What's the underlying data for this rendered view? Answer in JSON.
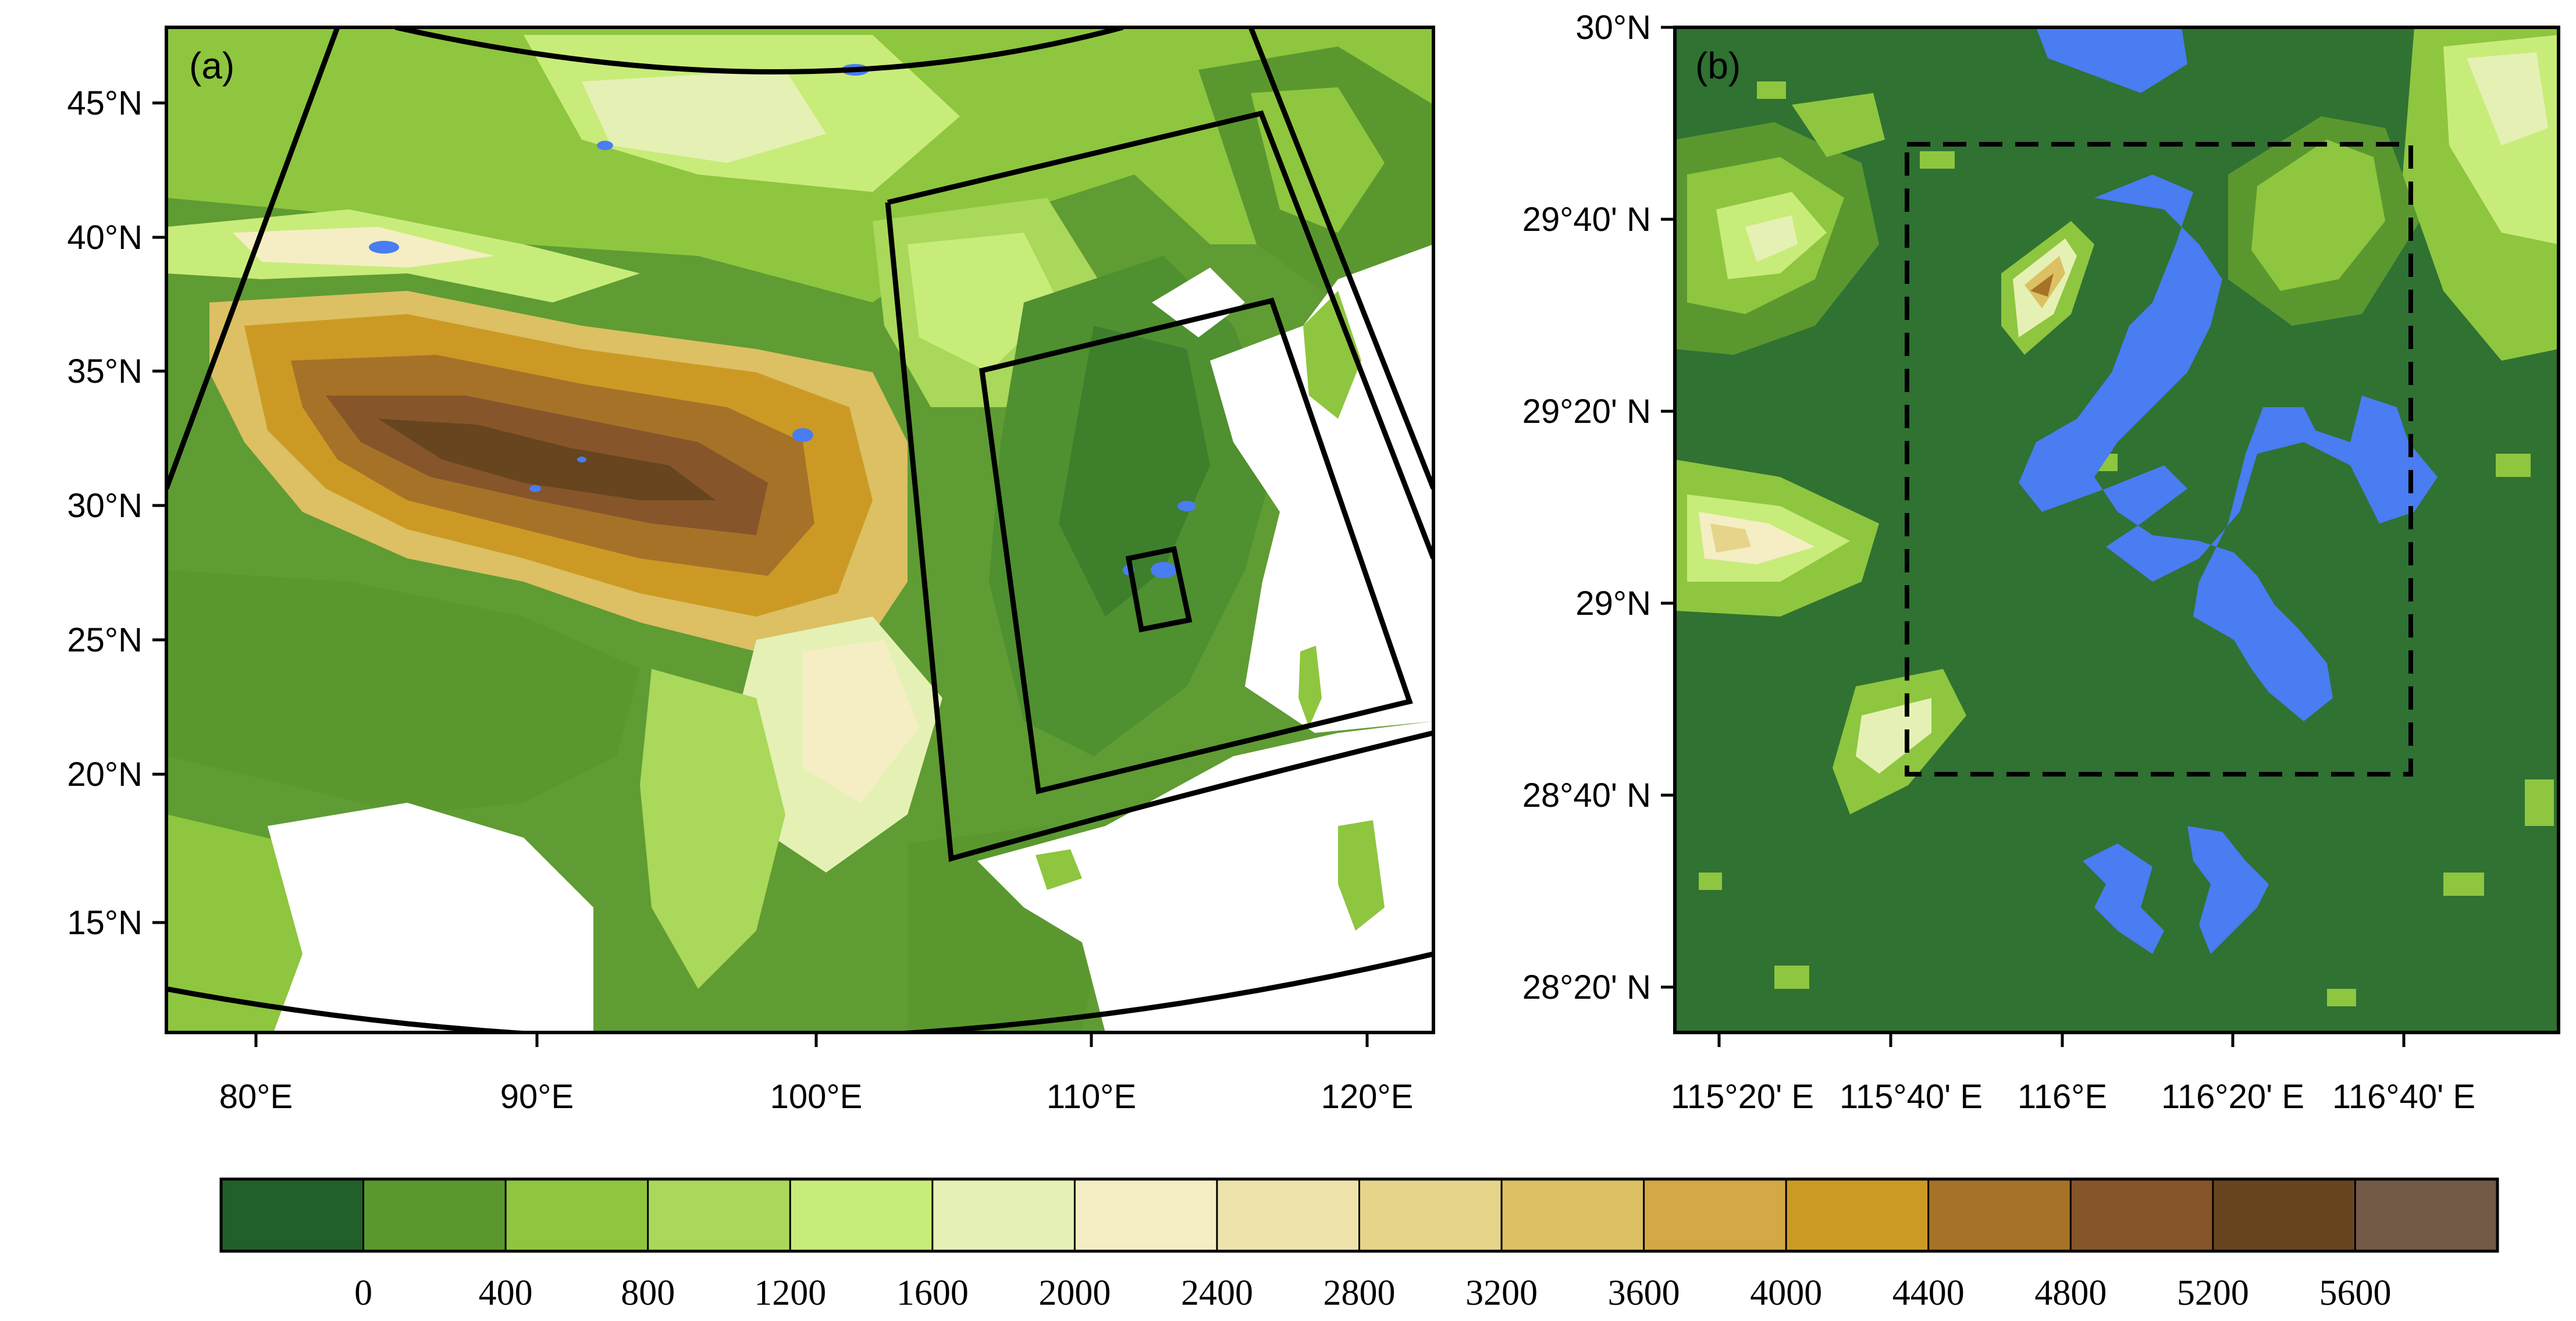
{
  "panel_a": {
    "label": "(a)",
    "x_ticks": [
      "80°E",
      "90°E",
      "100°E",
      "110°E",
      "120°E"
    ],
    "y_ticks": [
      "45°N",
      "40°N",
      "35°N",
      "30°N",
      "25°N",
      "20°N",
      "15°N"
    ]
  },
  "panel_b": {
    "label": "(b)",
    "x_ticks": [
      "115°20' E",
      "115°40' E",
      "116°E",
      "116°20' E",
      "116°40' E"
    ],
    "y_ticks": [
      "30°N",
      "29°40' N",
      "29°20' N",
      "29°N",
      "28°40' N",
      "28°20' N"
    ]
  },
  "colorbar": {
    "labels": [
      "0",
      "400",
      "800",
      "1200",
      "1600",
      "2000",
      "2400",
      "2800",
      "3200",
      "3600",
      "4000",
      "4400",
      "4800",
      "5200",
      "5600"
    ],
    "colors": [
      "#21602a",
      "#5a982f",
      "#8ec63f",
      "#a9d85a",
      "#c8ec79",
      "#e5f1b4",
      "#f5eec4",
      "#eee4ab",
      "#e6d48a",
      "#dcc063",
      "#d4a844",
      "#cc9a24",
      "#a67228",
      "#86552a",
      "#66451f",
      "#725a46"
    ]
  },
  "colors": {
    "water": "#4a7cf2",
    "land_b": "#2f7232"
  }
}
